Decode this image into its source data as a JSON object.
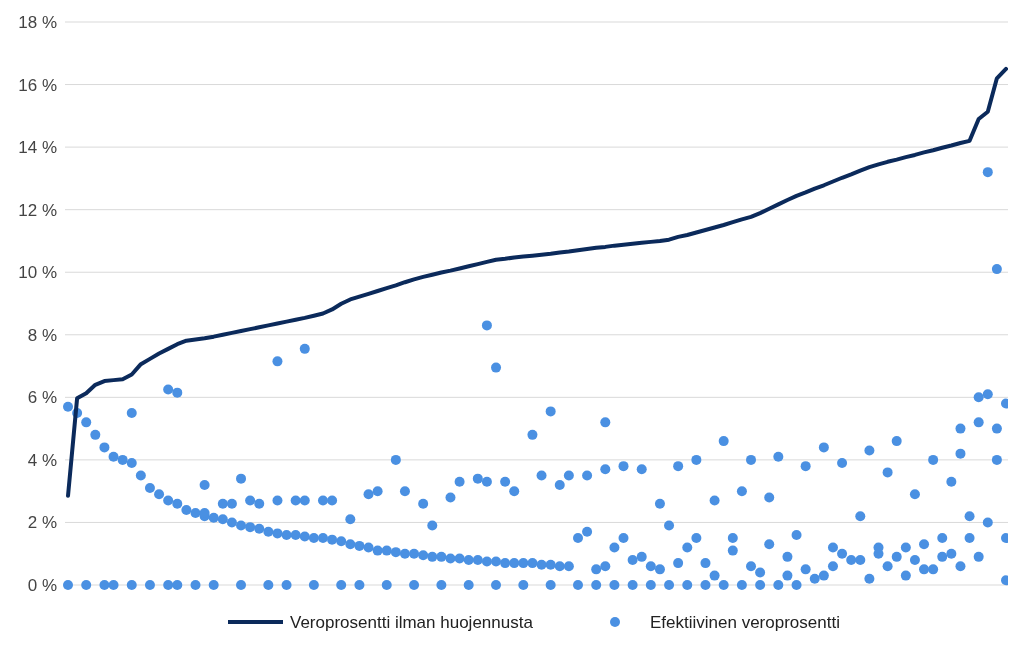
{
  "chart_data": {
    "type": "line",
    "ylim": [
      0,
      18
    ],
    "yticks": [
      {
        "value": 0,
        "label": "0 %"
      },
      {
        "value": 2,
        "label": "2 %"
      },
      {
        "value": 4,
        "label": "4 %"
      },
      {
        "value": 6,
        "label": "6 %"
      },
      {
        "value": 8,
        "label": "8 %"
      },
      {
        "value": 10,
        "label": "10 %"
      },
      {
        "value": 12,
        "label": "12 %"
      },
      {
        "value": 14,
        "label": "14 %"
      },
      {
        "value": 16,
        "label": "16 %"
      },
      {
        "value": 18,
        "label": "18 %"
      }
    ],
    "grid": "y",
    "legend": "bottom",
    "categories": [
      null,
      null,
      null,
      null,
      null,
      null,
      null,
      null,
      null,
      null,
      null,
      null,
      null,
      null,
      null,
      null,
      null,
      null,
      null,
      null,
      null,
      null,
      null,
      null,
      null,
      null,
      null,
      null,
      null,
      null,
      null,
      null,
      null,
      null,
      null,
      null,
      null,
      null,
      null,
      null,
      null,
      null,
      null,
      null,
      null,
      null,
      null,
      null,
      null,
      null,
      null,
      null,
      null,
      null,
      null,
      null,
      null,
      null,
      null,
      null,
      null,
      null,
      null,
      null,
      null,
      null,
      null,
      null,
      null,
      null,
      null,
      null,
      null,
      null,
      null,
      null,
      null,
      null,
      null,
      null,
      null,
      null,
      null,
      null,
      null,
      null,
      null,
      null,
      null,
      null,
      null,
      null,
      null,
      null,
      null,
      null,
      null,
      null,
      null,
      null,
      null,
      null,
      null,
      null
    ],
    "series": [
      {
        "name": "Veroprosentti ilman huojennusta",
        "color": "#0b2a5b",
        "values": [
          2.85,
          5.97,
          6.13,
          6.4,
          6.52,
          6.55,
          6.58,
          6.73,
          7.06,
          7.23,
          7.4,
          7.55,
          7.7,
          7.81,
          7.85,
          7.89,
          7.94,
          8.0,
          8.06,
          8.12,
          8.18,
          8.24,
          8.3,
          8.36,
          8.42,
          8.48,
          8.54,
          8.61,
          8.68,
          8.81,
          8.99,
          9.13,
          9.22,
          9.31,
          9.4,
          9.49,
          9.58,
          9.68,
          9.77,
          9.85,
          9.92,
          9.99,
          10.05,
          10.12,
          10.19,
          10.26,
          10.33,
          10.4,
          10.43,
          10.47,
          10.5,
          10.53,
          10.56,
          10.59,
          10.63,
          10.66,
          10.7,
          10.74,
          10.78,
          10.81,
          10.85,
          10.88,
          10.91,
          10.94,
          10.97,
          11.0,
          11.04,
          11.13,
          11.19,
          11.27,
          11.35,
          11.43,
          11.51,
          11.6,
          11.69,
          11.77,
          11.89,
          12.03,
          12.17,
          12.31,
          12.44,
          12.55,
          12.67,
          12.78,
          12.9,
          13.02,
          13.13,
          13.25,
          13.36,
          13.45,
          13.53,
          13.6,
          13.68,
          13.75,
          13.83,
          13.9,
          13.98,
          14.05,
          14.13,
          14.2,
          14.9,
          15.13,
          16.2,
          16.5
        ]
      },
      {
        "name": "Efektiivinen veroprosentti",
        "type": "scatter",
        "color": "#4a90e2",
        "values": [
          5.7,
          5.5,
          5.2,
          4.8,
          4.4,
          4.1,
          4.0,
          3.9,
          3.5,
          3.1,
          2.9,
          2.7,
          2.6,
          2.4,
          2.3,
          2.2,
          2.15,
          2.1,
          2.0,
          1.9,
          1.85,
          1.8,
          1.7,
          1.65,
          1.6,
          1.6,
          1.55,
          1.5,
          1.5,
          1.45,
          1.4,
          1.3,
          1.25,
          1.2,
          1.1,
          1.1,
          1.05,
          1.0,
          1.0,
          0.95,
          0.9,
          0.9,
          0.85,
          0.85,
          0.8,
          0.8,
          0.75,
          0.75,
          0.7,
          0.7,
          0.7,
          0.7,
          0.65,
          0.65,
          0.6,
          0.6,
          1.5,
          3.5,
          0.5,
          3.7,
          1.2,
          3.8,
          0.8,
          3.7,
          0.6,
          2.6,
          1.9,
          3.8,
          1.2,
          4.0,
          0.7,
          2.7,
          4.6,
          1.5,
          3.0,
          4.0,
          0.4,
          2.8,
          4.1,
          0.3,
          1.6,
          3.8,
          0.2,
          4.4,
          1.2,
          3.9,
          0.8,
          2.2,
          4.3,
          1.0,
          3.6,
          4.6,
          1.2,
          2.9,
          0.5,
          4.0,
          1.5,
          3.3,
          5.0,
          2.2,
          5.2,
          6.1,
          4.0,
          5.8
        ]
      },
      {
        "type": "scatter",
        "color": "#4a90e2",
        "values": [
          0,
          null,
          0,
          null,
          0,
          0,
          null,
          0,
          null,
          0,
          null,
          0,
          0,
          null,
          0,
          2.3,
          0,
          2.6,
          2.6,
          0,
          2.7,
          2.6,
          0,
          2.7,
          0,
          2.7,
          2.7,
          0,
          2.7,
          2.7,
          0,
          2.1,
          0,
          2.9,
          3.0,
          0,
          4.0,
          3.0,
          0,
          2.6,
          1.9,
          0,
          2.8,
          3.3,
          0,
          3.4,
          3.3,
          0,
          3.3,
          3.0,
          0,
          4.8,
          3.5,
          0,
          3.2,
          3.5,
          0,
          1.7,
          0,
          0.6,
          0,
          1.5,
          0,
          0.9,
          0,
          0.5,
          0,
          0.7,
          0,
          1.5,
          0,
          0.3,
          0,
          1.1,
          0,
          0.6,
          0,
          1.3,
          0,
          0.9,
          0,
          0.5,
          null,
          0.3,
          0.6,
          1.0,
          null,
          0.8,
          0.2,
          1.2,
          0.6,
          0.9,
          0.3,
          0.8,
          1.3,
          0.5,
          0.9,
          1.0,
          0.6,
          1.5,
          0.9,
          2.0,
          5.0,
          1.5
        ]
      },
      {
        "type": "scatter",
        "color": "#4a90e2",
        "values": [
          null,
          null,
          null,
          null,
          null,
          null,
          null,
          5.5,
          null,
          null,
          null,
          6.25,
          6.15,
          null,
          null,
          3.2,
          null,
          null,
          null,
          3.4,
          null,
          null,
          null,
          7.15,
          null,
          null,
          7.55,
          null,
          null,
          null,
          null,
          null,
          null,
          null,
          null,
          null,
          null,
          null,
          null,
          null,
          null,
          null,
          null,
          null,
          null,
          null,
          8.3,
          6.95,
          null,
          null,
          null,
          null,
          null,
          5.55,
          null,
          null,
          null,
          null,
          null,
          5.2,
          null,
          null,
          null,
          null,
          null,
          null,
          null,
          null,
          null,
          null,
          null,
          null,
          null,
          null,
          null,
          null,
          null,
          null,
          null,
          null,
          null,
          null,
          null,
          null,
          null,
          null,
          null,
          null,
          null,
          null,
          null,
          null,
          null,
          null,
          null,
          null,
          null,
          null,
          4.2,
          null,
          6.0,
          13.2,
          10.1,
          0.15
        ]
      }
    ]
  }
}
